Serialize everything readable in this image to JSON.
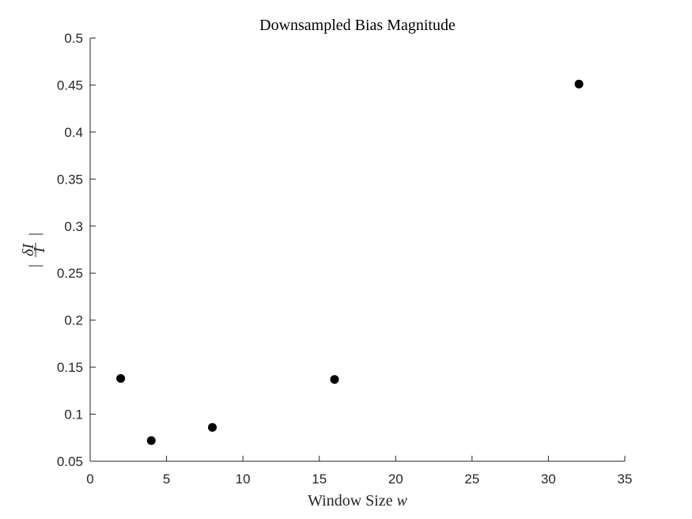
{
  "chart_data": {
    "type": "scatter",
    "title": "Downsampled Bias Magnitude",
    "xlabel_text": "Window Size ",
    "xlabel_var": "w",
    "ylabel_parts": {
      "bar_left": "|",
      "numerator": "δI",
      "denominator": "I",
      "bar_right": "|"
    },
    "xlim": [
      0,
      35
    ],
    "ylim": [
      0.05,
      0.5
    ],
    "xticks": [
      0,
      5,
      10,
      15,
      20,
      25,
      30,
      35
    ],
    "yticks": [
      0.05,
      0.1,
      0.15,
      0.2,
      0.25,
      0.3,
      0.35,
      0.4,
      0.45,
      0.5
    ],
    "xtick_labels": [
      "0",
      "5",
      "10",
      "15",
      "20",
      "25",
      "30",
      "35"
    ],
    "ytick_labels": [
      "0.05",
      "0.1",
      "0.15",
      "0.2",
      "0.25",
      "0.3",
      "0.35",
      "0.4",
      "0.45",
      "0.5"
    ],
    "grid": false,
    "marker_color": "#000000",
    "x": [
      2,
      4,
      8,
      16,
      32
    ],
    "y": [
      0.138,
      0.072,
      0.086,
      0.137,
      0.451
    ]
  }
}
